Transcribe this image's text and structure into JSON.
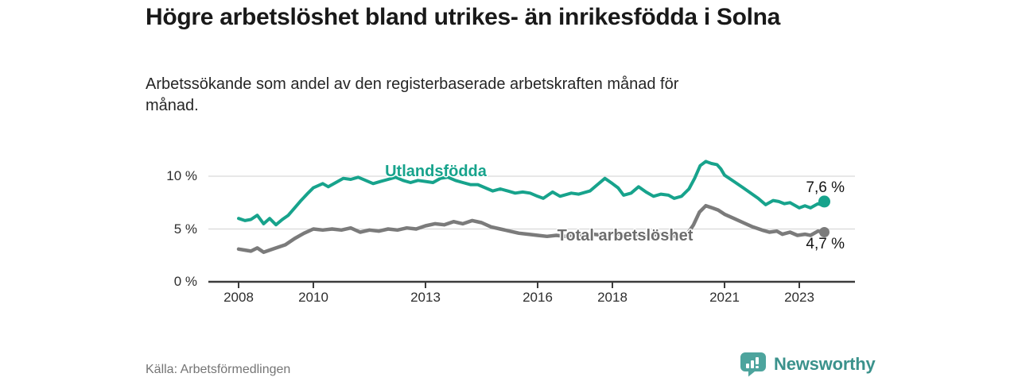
{
  "header": {
    "title": "Högre arbetslöshet bland utrikes- än inrikesfödda i Solna",
    "subtitle": "Arbetssökande som andel av den registerbaserade arbetskraften månad för månad."
  },
  "footer": {
    "source": "Källa: Arbetsförmedlingen",
    "brand": "Newsworthy",
    "brand_icon": "newsworthy-chart-bubble-icon"
  },
  "colors": {
    "series_foreign_born": "#17a38c",
    "series_total": "#7b7b7b",
    "series_total_label": "#6d6d6d",
    "axis": "#3b3b3b",
    "gridline": "#d9d9d9",
    "title_text": "#191919",
    "source_text": "#757575",
    "brand_teal": "#3b928c",
    "background": "#ffffff"
  },
  "chart_data": {
    "type": "line",
    "title": "Högre arbetslöshet bland utrikes- än inrikesfödda i Solna",
    "subtitle": "Arbetssökande som andel av den registerbaserade arbetskraften månad för månad.",
    "unit": "%",
    "frequency": "monthly",
    "grid": "horizontal-only",
    "legend_position": "inline-labels",
    "xlim": [
      2007.2,
      2024.4
    ],
    "ylim": [
      0,
      12
    ],
    "x_ticks": [
      {
        "year": 2008,
        "label": "2008"
      },
      {
        "year": 2010,
        "label": "2010"
      },
      {
        "year": 2013,
        "label": "2013"
      },
      {
        "year": 2016,
        "label": "2016"
      },
      {
        "year": 2018,
        "label": "2018"
      },
      {
        "year": 2021,
        "label": "2021"
      },
      {
        "year": 2023,
        "label": "2023"
      }
    ],
    "y_ticks": [
      {
        "value": 10,
        "label": "10 %"
      },
      {
        "value": 5,
        "label": "5 %"
      },
      {
        "value": 0,
        "label": "0 %"
      }
    ],
    "series": [
      {
        "name": "Utlandsfödda",
        "color": "#17a38c",
        "end_value": 7.6,
        "end_label": "7,6 %",
        "points": [
          [
            2008.0,
            6.0
          ],
          [
            2008.17,
            5.8
          ],
          [
            2008.33,
            5.9
          ],
          [
            2008.5,
            6.3
          ],
          [
            2008.67,
            5.5
          ],
          [
            2008.83,
            6.0
          ],
          [
            2009.0,
            5.4
          ],
          [
            2009.17,
            5.9
          ],
          [
            2009.33,
            6.3
          ],
          [
            2009.5,
            7.0
          ],
          [
            2009.67,
            7.7
          ],
          [
            2009.83,
            8.3
          ],
          [
            2010.0,
            8.9
          ],
          [
            2010.25,
            9.3
          ],
          [
            2010.4,
            9.0
          ],
          [
            2010.6,
            9.4
          ],
          [
            2010.8,
            9.8
          ],
          [
            2011.0,
            9.7
          ],
          [
            2011.2,
            9.9
          ],
          [
            2011.4,
            9.6
          ],
          [
            2011.6,
            9.3
          ],
          [
            2011.8,
            9.5
          ],
          [
            2012.0,
            9.7
          ],
          [
            2012.2,
            9.9
          ],
          [
            2012.4,
            9.6
          ],
          [
            2012.6,
            9.4
          ],
          [
            2012.8,
            9.6
          ],
          [
            2013.0,
            9.5
          ],
          [
            2013.2,
            9.4
          ],
          [
            2013.4,
            9.8
          ],
          [
            2013.6,
            9.9
          ],
          [
            2013.8,
            9.6
          ],
          [
            2014.0,
            9.4
          ],
          [
            2014.2,
            9.2
          ],
          [
            2014.4,
            9.2
          ],
          [
            2014.6,
            8.9
          ],
          [
            2014.8,
            8.6
          ],
          [
            2015.0,
            8.8
          ],
          [
            2015.2,
            8.6
          ],
          [
            2015.4,
            8.4
          ],
          [
            2015.6,
            8.5
          ],
          [
            2015.8,
            8.4
          ],
          [
            2016.0,
            8.1
          ],
          [
            2016.15,
            7.9
          ],
          [
            2016.4,
            8.5
          ],
          [
            2016.6,
            8.1
          ],
          [
            2016.9,
            8.4
          ],
          [
            2017.1,
            8.3
          ],
          [
            2017.4,
            8.6
          ],
          [
            2017.6,
            9.2
          ],
          [
            2017.8,
            9.8
          ],
          [
            2018.0,
            9.3
          ],
          [
            2018.15,
            8.9
          ],
          [
            2018.3,
            8.2
          ],
          [
            2018.5,
            8.4
          ],
          [
            2018.7,
            9.0
          ],
          [
            2018.9,
            8.5
          ],
          [
            2019.1,
            8.1
          ],
          [
            2019.3,
            8.3
          ],
          [
            2019.5,
            8.2
          ],
          [
            2019.65,
            7.9
          ],
          [
            2019.85,
            8.1
          ],
          [
            2020.05,
            8.8
          ],
          [
            2020.2,
            9.8
          ],
          [
            2020.35,
            11.0
          ],
          [
            2020.5,
            11.4
          ],
          [
            2020.65,
            11.2
          ],
          [
            2020.8,
            11.1
          ],
          [
            2020.9,
            10.7
          ],
          [
            2021.0,
            10.1
          ],
          [
            2021.25,
            9.5
          ],
          [
            2021.5,
            8.9
          ],
          [
            2021.7,
            8.4
          ],
          [
            2021.9,
            7.9
          ],
          [
            2022.1,
            7.3
          ],
          [
            2022.3,
            7.7
          ],
          [
            2022.45,
            7.6
          ],
          [
            2022.6,
            7.4
          ],
          [
            2022.75,
            7.5
          ],
          [
            2023.0,
            7.0
          ],
          [
            2023.15,
            7.2
          ],
          [
            2023.3,
            7.0
          ],
          [
            2023.5,
            7.4
          ],
          [
            2023.58,
            7.3
          ],
          [
            2023.67,
            7.6
          ]
        ]
      },
      {
        "name": "Total arbetslöshet",
        "color": "#7b7b7b",
        "end_value": 4.7,
        "end_label": "4,7 %",
        "points": [
          [
            2008.0,
            3.1
          ],
          [
            2008.17,
            3.0
          ],
          [
            2008.33,
            2.9
          ],
          [
            2008.5,
            3.2
          ],
          [
            2008.67,
            2.8
          ],
          [
            2008.83,
            3.0
          ],
          [
            2009.0,
            3.2
          ],
          [
            2009.25,
            3.5
          ],
          [
            2009.5,
            4.1
          ],
          [
            2009.75,
            4.6
          ],
          [
            2010.0,
            5.0
          ],
          [
            2010.25,
            4.9
          ],
          [
            2010.5,
            5.0
          ],
          [
            2010.75,
            4.9
          ],
          [
            2011.0,
            5.1
          ],
          [
            2011.25,
            4.7
          ],
          [
            2011.5,
            4.9
          ],
          [
            2011.75,
            4.8
          ],
          [
            2012.0,
            5.0
          ],
          [
            2012.25,
            4.9
          ],
          [
            2012.5,
            5.1
          ],
          [
            2012.75,
            5.0
          ],
          [
            2013.0,
            5.3
          ],
          [
            2013.25,
            5.5
          ],
          [
            2013.5,
            5.4
          ],
          [
            2013.75,
            5.7
          ],
          [
            2014.0,
            5.5
          ],
          [
            2014.25,
            5.8
          ],
          [
            2014.5,
            5.6
          ],
          [
            2014.75,
            5.2
          ],
          [
            2015.0,
            5.0
          ],
          [
            2015.25,
            4.8
          ],
          [
            2015.5,
            4.6
          ],
          [
            2015.75,
            4.5
          ],
          [
            2016.0,
            4.4
          ],
          [
            2016.25,
            4.3
          ],
          [
            2016.5,
            4.4
          ],
          [
            2016.75,
            4.3
          ],
          [
            2017.0,
            4.5
          ],
          [
            2017.25,
            4.4
          ],
          [
            2017.5,
            4.5
          ],
          [
            2017.75,
            4.4
          ],
          [
            2018.0,
            4.6
          ],
          [
            2018.25,
            4.5
          ],
          [
            2018.5,
            4.4
          ],
          [
            2018.75,
            4.5
          ],
          [
            2019.0,
            4.4
          ],
          [
            2019.25,
            4.5
          ],
          [
            2019.5,
            4.4
          ],
          [
            2019.75,
            4.3
          ],
          [
            2020.0,
            4.5
          ],
          [
            2020.17,
            5.4
          ],
          [
            2020.33,
            6.6
          ],
          [
            2020.5,
            7.2
          ],
          [
            2020.67,
            7.0
          ],
          [
            2020.83,
            6.8
          ],
          [
            2021.0,
            6.4
          ],
          [
            2021.25,
            6.0
          ],
          [
            2021.5,
            5.6
          ],
          [
            2021.75,
            5.2
          ],
          [
            2022.0,
            4.9
          ],
          [
            2022.2,
            4.7
          ],
          [
            2022.4,
            4.8
          ],
          [
            2022.55,
            4.5
          ],
          [
            2022.75,
            4.7
          ],
          [
            2022.95,
            4.4
          ],
          [
            2023.15,
            4.5
          ],
          [
            2023.3,
            4.4
          ],
          [
            2023.5,
            4.8
          ],
          [
            2023.67,
            4.7
          ]
        ]
      }
    ]
  }
}
